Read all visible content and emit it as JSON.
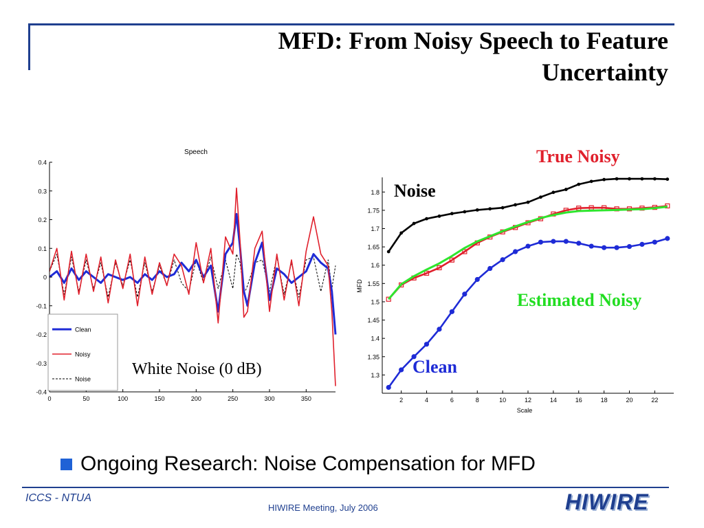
{
  "slide": {
    "title": "MFD: From Noisy Speech to Feature Uncertainty",
    "bullet": "Ongoing Research: Noise Compensation for MFD",
    "footer_left": "ICCS - NTUA",
    "footer_center": "HIWIRE Meeting, July 2006",
    "logo": "HIWIRE",
    "colors": {
      "accent": "#1f3f8f",
      "bullet": "#1f62d6"
    }
  },
  "chart_data": [
    {
      "type": "line",
      "title": "Speech",
      "xlabel": "",
      "ylabel": "",
      "xlim": [
        0,
        390
      ],
      "ylim": [
        -0.4,
        0.4
      ],
      "x_ticks": [
        0,
        50,
        100,
        150,
        200,
        250,
        300,
        350
      ],
      "x_tick_labels": [
        "0",
        "50",
        "100",
        "150",
        "200",
        "250",
        "300",
        "350"
      ],
      "y_ticks": [
        0.4,
        0.3,
        0.2,
        0.1,
        0,
        -0.1,
        -0.2,
        -0.3,
        -0.4
      ],
      "y_tick_labels": [
        "0.4",
        "0.3",
        "0.2",
        "0.1",
        "0",
        "-0.1",
        "-0.2",
        "-0.3",
        "-0.4"
      ],
      "legend": {
        "placement": "bottom-left",
        "entries": [
          "Clean",
          "Noisy",
          "Noise"
        ]
      },
      "annotation": "White Noise (0 dB)",
      "x": [
        0,
        10,
        20,
        30,
        40,
        50,
        60,
        70,
        80,
        90,
        100,
        110,
        120,
        130,
        140,
        150,
        160,
        170,
        180,
        190,
        200,
        210,
        220,
        230,
        240,
        250,
        255,
        260,
        265,
        270,
        280,
        290,
        300,
        310,
        320,
        330,
        340,
        350,
        360,
        370,
        380,
        385,
        390
      ],
      "series": [
        {
          "name": "Clean",
          "color": "#1e2bd6",
          "style": "solid-thick",
          "values": [
            0,
            0.02,
            -0.02,
            0.03,
            -0.01,
            0.02,
            0,
            -0.02,
            0.01,
            0,
            -0.01,
            0,
            -0.02,
            0.01,
            -0.01,
            0.02,
            0,
            0.01,
            0.05,
            0.02,
            0.06,
            0,
            0.04,
            -0.12,
            0.08,
            0.12,
            0.22,
            0.1,
            -0.05,
            -0.1,
            0.05,
            0.12,
            -0.08,
            0.03,
            0.01,
            -0.02,
            0,
            0.02,
            0.08,
            0.05,
            0.03,
            -0.05,
            -0.2
          ]
        },
        {
          "name": "Noisy",
          "color": "#e0202c",
          "style": "solid",
          "values": [
            0.02,
            0.1,
            -0.08,
            0.09,
            -0.06,
            0.08,
            -0.05,
            0.07,
            -0.09,
            0.06,
            -0.04,
            0.08,
            -0.1,
            0.07,
            -0.06,
            0.05,
            -0.03,
            0.08,
            0.04,
            -0.06,
            0.12,
            -0.02,
            0.1,
            -0.16,
            0.14,
            0.08,
            0.31,
            0.12,
            -0.14,
            -0.12,
            0.1,
            0.16,
            -0.12,
            0.08,
            -0.08,
            0.06,
            -0.1,
            0.09,
            0.21,
            0.08,
            0.04,
            -0.12,
            -0.38
          ]
        },
        {
          "name": "Noise",
          "color": "#000000",
          "style": "dashed",
          "values": [
            0.02,
            0.08,
            -0.06,
            0.07,
            -0.05,
            0.06,
            -0.04,
            0.05,
            -0.07,
            0.05,
            -0.03,
            0.06,
            -0.07,
            0.05,
            -0.05,
            0.04,
            -0.03,
            0.06,
            -0.02,
            -0.05,
            0.06,
            -0.02,
            0.07,
            -0.04,
            0.06,
            -0.04,
            0.08,
            0.05,
            -0.06,
            -0.03,
            0.05,
            0.06,
            -0.05,
            0.07,
            -0.06,
            0.05,
            -0.07,
            0.06,
            0.07,
            -0.05,
            0.06,
            -0.04,
            0.04
          ]
        }
      ]
    },
    {
      "type": "line",
      "title": "",
      "xlabel": "Scale",
      "ylabel": "MFD",
      "xlim": [
        0.5,
        23.5
      ],
      "ylim": [
        1.25,
        1.84
      ],
      "x_ticks": [
        2,
        4,
        6,
        8,
        10,
        12,
        14,
        16,
        18,
        20,
        22
      ],
      "x_tick_labels": [
        "2",
        "4",
        "6",
        "8",
        "10",
        "12",
        "14",
        "16",
        "18",
        "20",
        "22"
      ],
      "y_ticks": [
        1.3,
        1.35,
        1.4,
        1.45,
        1.5,
        1.55,
        1.6,
        1.65,
        1.7,
        1.75,
        1.8
      ],
      "y_tick_labels": [
        "1.3",
        "1.35",
        "1.4",
        "1.45",
        "1.5",
        "1.55",
        "1.6",
        "1.65",
        "1.7",
        "1.75",
        "1.8"
      ],
      "x": [
        1,
        2,
        3,
        4,
        5,
        6,
        7,
        8,
        9,
        10,
        11,
        12,
        13,
        14,
        15,
        16,
        17,
        18,
        19,
        20,
        21,
        22,
        23
      ],
      "series": [
        {
          "name": "Noise",
          "color": "#000000",
          "label_color": "#000000",
          "marker": "dot",
          "values": [
            1.637,
            1.688,
            1.714,
            1.727,
            1.734,
            1.741,
            1.746,
            1.751,
            1.754,
            1.757,
            1.765,
            1.772,
            1.786,
            1.799,
            1.807,
            1.821,
            1.829,
            1.834,
            1.836,
            1.836,
            1.836,
            1.836,
            1.835
          ]
        },
        {
          "name": "True Noisy",
          "color": "#e0202c",
          "label_color": "#e0202c",
          "marker": "square",
          "values": [
            1.507,
            1.546,
            1.565,
            1.578,
            1.593,
            1.614,
            1.637,
            1.661,
            1.677,
            1.691,
            1.703,
            1.716,
            1.727,
            1.74,
            1.75,
            1.756,
            1.757,
            1.757,
            1.754,
            1.754,
            1.756,
            1.758,
            1.762
          ]
        },
        {
          "name": "Estimated Noisy",
          "color": "#2ee62e",
          "label_color": "#22dd22",
          "marker": "none",
          "values": [
            1.507,
            1.548,
            1.57,
            1.588,
            1.605,
            1.625,
            1.647,
            1.665,
            1.679,
            1.693,
            1.706,
            1.718,
            1.729,
            1.737,
            1.744,
            1.748,
            1.749,
            1.75,
            1.751,
            1.752,
            1.753,
            1.756,
            1.76
          ]
        },
        {
          "name": "Clean",
          "color": "#1e2bd6",
          "label_color": "#1e2bd6",
          "marker": "dot",
          "values": [
            1.266,
            1.314,
            1.35,
            1.384,
            1.425,
            1.473,
            1.521,
            1.561,
            1.591,
            1.615,
            1.637,
            1.652,
            1.663,
            1.665,
            1.665,
            1.66,
            1.652,
            1.648,
            1.648,
            1.651,
            1.657,
            1.663,
            1.673
          ]
        }
      ]
    }
  ]
}
